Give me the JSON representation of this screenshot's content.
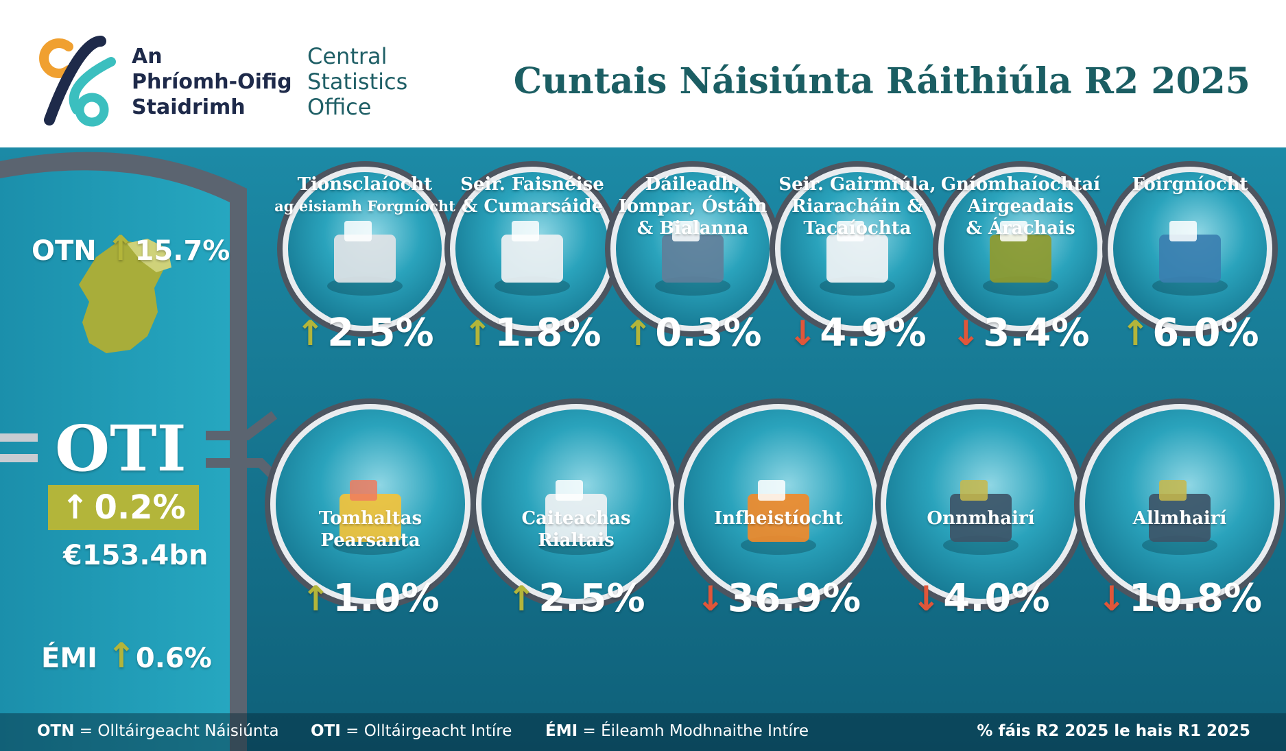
{
  "header": {
    "org_irish": [
      "An",
      "Phríomh-Oifig",
      "Staidrimh"
    ],
    "org_english": [
      "Central",
      "Statistics",
      "Office"
    ],
    "title": "Cuntais Náisiúnta Ráithiúla R2 2025"
  },
  "headline": {
    "otn_label": "OTN",
    "otn_arrow": "↑",
    "otn_value": "15.7%",
    "oti_label": "OTI",
    "oti_arrow": "↑",
    "oti_value": "0.2%",
    "oti_amount": "€153.4bn",
    "emi_label": "ÉMI",
    "emi_arrow": "↑",
    "emi_value": "0.6%"
  },
  "sectors": [
    {
      "title": "Tionsclaíocht",
      "subtitle": "ag eisiamh Forgníocht",
      "direction": "up",
      "arrow": "↑",
      "value": "2.5%",
      "icon": "factory-icon"
    },
    {
      "title": "Seir. Faisnéise",
      "subtitle": "& Cumarsáide",
      "direction": "up",
      "arrow": "↑",
      "value": "1.8%",
      "icon": "office-worker-icon"
    },
    {
      "title": "Dáileadh,",
      "subtitle": "Iompar, Óstáin",
      "subtitle2": "& Bialanna",
      "direction": "up",
      "arrow": "↑",
      "value": "0.3%",
      "icon": "delivery-truck-icon"
    },
    {
      "title": "Seir. Gairmiúla,",
      "subtitle": "Riaracháin &",
      "subtitle2": "Tacaíochta",
      "direction": "down",
      "arrow": "↓",
      "value": "4.9%",
      "icon": "laptop-icon"
    },
    {
      "title": "Gníomhaíochtaí",
      "subtitle": "Airgeadais",
      "subtitle2": "& Árachais",
      "direction": "down",
      "arrow": "↓",
      "value": "3.4%",
      "icon": "umbrella-icon"
    },
    {
      "title": "Foirgníocht",
      "subtitle": "",
      "direction": "up",
      "arrow": "↑",
      "value": "6.0%",
      "icon": "construction-worker-icon"
    }
  ],
  "expenditure": [
    {
      "title": "Tomhaltas",
      "subtitle": "Pearsanta",
      "direction": "up",
      "arrow": "↑",
      "value": "1.0%",
      "icon": "shopping-bags-icon"
    },
    {
      "title": "Caiteachas",
      "subtitle": "Rialtais",
      "direction": "up",
      "arrow": "↑",
      "value": "2.5%",
      "icon": "government-building-icon"
    },
    {
      "title": "Infheistíocht",
      "subtitle": "",
      "direction": "down",
      "arrow": "↓",
      "value": "36.9%",
      "icon": "crane-icon"
    },
    {
      "title": "Onnmhairí",
      "subtitle": "",
      "direction": "down",
      "arrow": "↓",
      "value": "4.0%",
      "icon": "cargo-ship-icon"
    },
    {
      "title": "Allmhairí",
      "subtitle": "",
      "direction": "down",
      "arrow": "↓",
      "value": "10.8%",
      "icon": "container-ship-icon"
    }
  ],
  "footer": {
    "otn_abbr": "OTN",
    "otn_def": " = Olltáirgeacht Náisiúnta",
    "oti_abbr": "OTI",
    "oti_def": " = Olltáirgeacht Intíre",
    "emi_abbr": "ÉMI",
    "emi_def": " = Éileamh Modhnaithe Intíre",
    "note": "% fáis R2 2025 le hais R1 2025"
  },
  "colors": {
    "teal_dark": "#1b5e63",
    "teal": "#1f9bb3",
    "ring": "#4d5560",
    "up": "#b3b53a",
    "down": "#e0563a",
    "brand_orange": "#f0a030",
    "brand_navy": "#1e2a4a",
    "brand_aqua": "#3bbfbf"
  }
}
